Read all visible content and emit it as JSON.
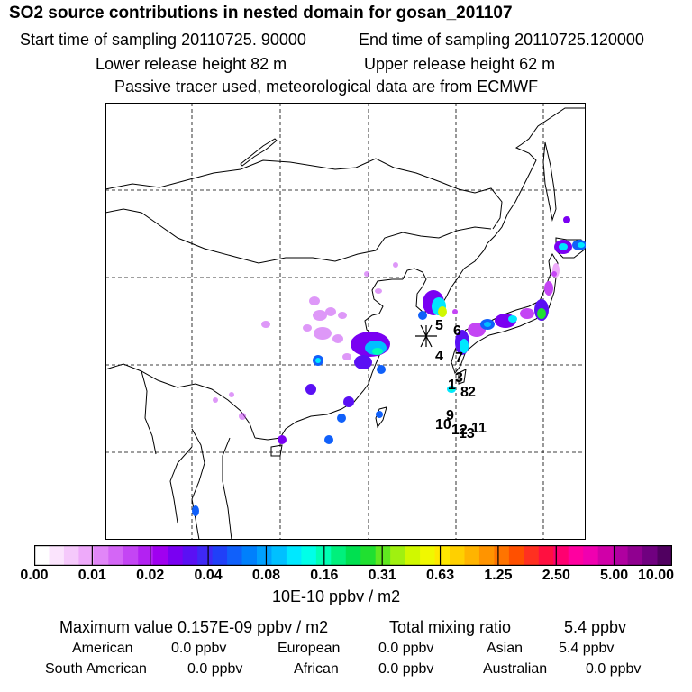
{
  "header": {
    "title": "SO2 source contributions in nested domain for gosan_201107",
    "start_time": "Start time of sampling 20110725. 90000",
    "end_time": "End time of sampling 20110725.120000",
    "lower_release": "Lower release height   82 m",
    "upper_release": "Upper release height   62 m",
    "tracer_note": "Passive tracer used, meteorological data are from ECMWF"
  },
  "map": {
    "station_marker": "asterisk-icon",
    "source_labels": [
      "5",
      "6",
      "4",
      "7",
      "3",
      "8",
      "2",
      "1",
      "9",
      "10",
      "11",
      "12",
      "13"
    ]
  },
  "colorbar": {
    "tick_labels": [
      "0.00",
      "0.01",
      "0.02",
      "0.04",
      "0.08",
      "0.16",
      "0.31",
      "0.63",
      "1.25",
      "2.50",
      "5.00",
      "10.00"
    ],
    "units": "10E-10 ppbv / m2",
    "colors": [
      "#ffffff",
      "#fbe4fd",
      "#f5c9fb",
      "#eeaafa",
      "#e186f8",
      "#d466f6",
      "#c445f4",
      "#b322f2",
      "#a000f0",
      "#7a00f2",
      "#5a10f4",
      "#3f28f6",
      "#2040f8",
      "#1060fa",
      "#0080fc",
      "#00a0fe",
      "#00c0ff",
      "#00e8ff",
      "#00ffe8",
      "#00ffb4",
      "#00f07c",
      "#00e050",
      "#20e030",
      "#60e820",
      "#a0f010",
      "#d0f800",
      "#f0f800",
      "#ffe800",
      "#ffd000",
      "#ffb400",
      "#ff9400",
      "#ff7400",
      "#ff5000",
      "#ff3020",
      "#ff1040",
      "#ff0070",
      "#ff00a0",
      "#f000b0",
      "#d000a8",
      "#b000a0",
      "#900090",
      "#700080",
      "#500060"
    ]
  },
  "summary": {
    "max_value": "Maximum value  0.157E-09 ppbv / m2",
    "total_mixing_label": "Total mixing ratio",
    "total_mixing_value": "5.4 ppbv",
    "regions": [
      {
        "name": "American",
        "value": "0.0 ppbv"
      },
      {
        "name": "European",
        "value": "0.0 ppbv"
      },
      {
        "name": "Asian",
        "value": "5.4 ppbv"
      },
      {
        "name": "South American",
        "value": "0.0 ppbv"
      },
      {
        "name": "African",
        "value": "0.0 ppbv"
      },
      {
        "name": "Australian",
        "value": "0.0 ppbv"
      }
    ]
  }
}
